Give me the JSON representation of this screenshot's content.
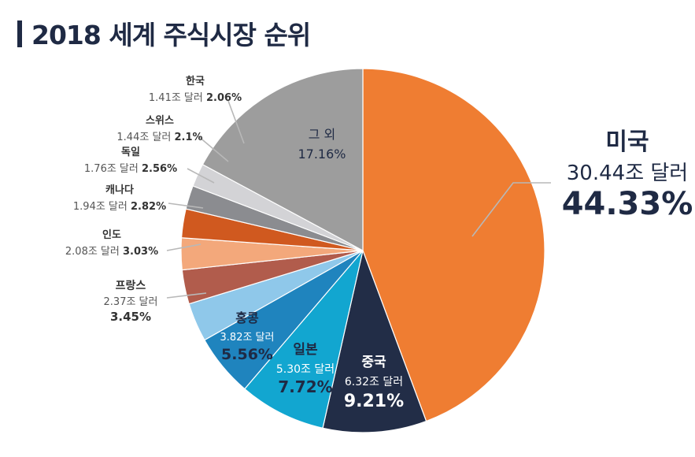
{
  "title": "2018 세계 주식시장 순위",
  "chart_data": {
    "type": "pie",
    "title": "2018 세계 주식시장 순위",
    "unit": "조 달러",
    "slices": [
      {
        "name": "미국",
        "amount": "30.44조 달러",
        "amount_value": 30.44,
        "percent_label": "44.33%",
        "value": 44.33,
        "color": "#ef7d32"
      },
      {
        "name": "중국",
        "amount": "6.32조 달러",
        "amount_value": 6.32,
        "percent_label": "9.21%",
        "value": 9.21,
        "color": "#222d47"
      },
      {
        "name": "일본",
        "amount": "5.30조 달러",
        "amount_value": 5.3,
        "percent_label": "7.72%",
        "value": 7.72,
        "color": "#12a6d0"
      },
      {
        "name": "홍콩",
        "amount": "3.82조 달러",
        "amount_value": 3.82,
        "percent_label": "5.56%",
        "value": 5.56,
        "color": "#1f84be"
      },
      {
        "name": "프랑스",
        "amount": "2.37조 달러",
        "amount_value": 2.37,
        "percent_label": "3.45%",
        "value": 3.45,
        "color": "#8fc8ea"
      },
      {
        "name": "인도",
        "amount": "2.08조 달러",
        "amount_value": 2.08,
        "percent_label": "3.03%",
        "value": 3.03,
        "color": "#b15c4c"
      },
      {
        "name": "캐나다",
        "amount": "1.94조 달러",
        "amount_value": 1.94,
        "percent_label": "2.82%",
        "value": 2.82,
        "color": "#f3a87b"
      },
      {
        "name": "독일",
        "amount": "1.76조 달러",
        "amount_value": 1.76,
        "percent_label": "2.56%",
        "value": 2.56,
        "color": "#d0591f"
      },
      {
        "name": "스위스",
        "amount": "1.44조 달러",
        "amount_value": 1.44,
        "percent_label": "2.1%",
        "value": 2.1,
        "color": "#8b8c90"
      },
      {
        "name": "한국",
        "amount": "1.41조 달러",
        "amount_value": 1.41,
        "percent_label": "2.06%",
        "value": 2.06,
        "color": "#d3d3d6"
      },
      {
        "name": "그 외",
        "amount": "",
        "amount_value": null,
        "percent_label": "17.16%",
        "value": 17.16,
        "color": "#9d9d9d"
      }
    ]
  }
}
